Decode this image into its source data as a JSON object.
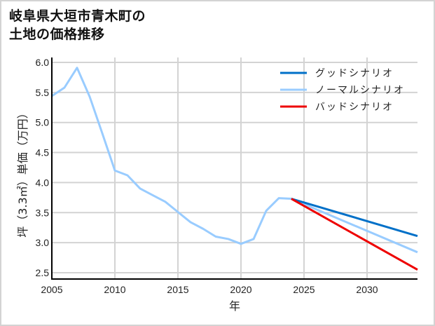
{
  "title_line1": "岐阜県大垣市青木町の",
  "title_line2": "土地の価格推移",
  "chart_data": {
    "type": "line",
    "title": "岐阜県大垣市青木町の土地の価格推移",
    "xlabel": "年",
    "ylabel": "坪（3.3㎡）単価（万円）",
    "xlim": [
      2005,
      2034
    ],
    "ylim": [
      2.4,
      6.05
    ],
    "x_ticks": [
      2005,
      2010,
      2015,
      2020,
      2025,
      2030
    ],
    "y_ticks": [
      2.5,
      3.0,
      3.5,
      4.0,
      4.5,
      5.0,
      5.5,
      6.0
    ],
    "y_tick_labels": [
      "2.5",
      "3.0",
      "3.5",
      "4.0",
      "4.5",
      "5.0",
      "5.5",
      "6.0"
    ],
    "grid": true,
    "legend_position": "upper right",
    "series": [
      {
        "name": "グッドシナリオ",
        "color": "#0070c8",
        "x": [
          2024,
          2034
        ],
        "values": [
          3.73,
          3.11
        ]
      },
      {
        "name": "ノーマルシナリオ",
        "color": "#99ccff",
        "x": [
          2005,
          2006,
          2007,
          2008,
          2009,
          2010,
          2011,
          2012,
          2013,
          2014,
          2015,
          2016,
          2017,
          2018,
          2019,
          2020,
          2021,
          2022,
          2023,
          2024,
          2034
        ],
        "values": [
          5.44,
          5.58,
          5.91,
          5.43,
          4.82,
          4.2,
          4.12,
          3.9,
          3.79,
          3.68,
          3.51,
          3.34,
          3.23,
          3.1,
          3.06,
          2.98,
          3.06,
          3.53,
          3.74,
          3.73,
          2.84
        ]
      },
      {
        "name": "バッドシナリオ",
        "color": "#ee0000",
        "x": [
          2024,
          2034
        ],
        "values": [
          3.73,
          2.55
        ]
      }
    ]
  }
}
